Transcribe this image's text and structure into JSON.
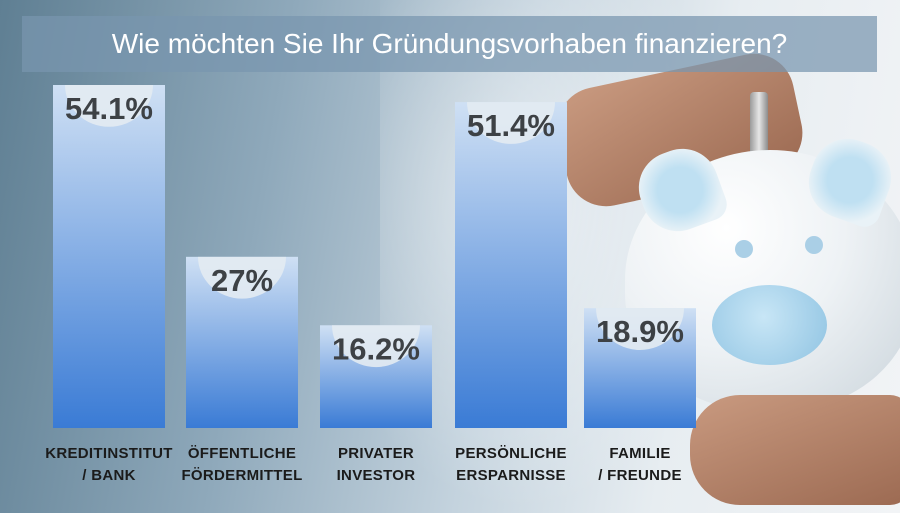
{
  "title": "Wie möchten Sie Ihr Gründungsvorhaben finanzieren?",
  "colors": {
    "bar_top": "#cfe0f4",
    "bar_bottom": "#3a7bd5",
    "cap": "#e3ebf2",
    "title_band": "#7896af"
  },
  "chart_data": {
    "type": "bar",
    "title": "Wie möchten Sie Ihr Gründungsvorhaben finanzieren?",
    "categories": [
      [
        "KREDITINSTITUT",
        "/ BANK"
      ],
      [
        "ÖFFENTLICHE",
        "FÖRDERMITTEL"
      ],
      [
        "PRIVATER",
        "INVESTOR"
      ],
      [
        "PERSÖNLICHE",
        "ERSPARNISSE"
      ],
      [
        "FAMILIE",
        "/ FREUNDE"
      ]
    ],
    "values": [
      54.1,
      27,
      16.2,
      51.4,
      18.9
    ],
    "value_labels": [
      "54.1%",
      "27%",
      "16.2%",
      "51.4%",
      "18.9%"
    ],
    "unit": "%",
    "ylim": [
      0,
      54.1
    ],
    "grid": false,
    "legend": "none"
  }
}
